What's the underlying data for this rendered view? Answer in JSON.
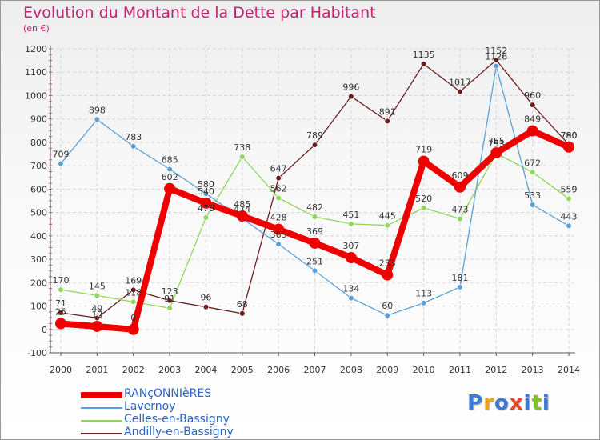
{
  "title": "Evolution du Montant de la Dette par Habitant",
  "subtitle": "(en €)",
  "logo_text": "Proxiti",
  "logo_colors": [
    "#3a7bd5",
    "#f0a020",
    "#3a7bd5",
    "#e8462a",
    "#3a7bd5",
    "#7fbf2a",
    "#3a7bd5"
  ],
  "chart_data": {
    "type": "line",
    "title": "Evolution du Montant de la Dette par Habitant",
    "ylabel": "(en €)",
    "xlabel": "",
    "ylim": [
      -100,
      1200
    ],
    "y_ticks": [
      -100,
      0,
      100,
      200,
      300,
      400,
      500,
      600,
      700,
      800,
      900,
      1000,
      1100,
      1200
    ],
    "grid": true,
    "legend_position": "bottom-left",
    "x": [
      "2000",
      "2001",
      "2002",
      "2003",
      "2004",
      "2005",
      "2006",
      "2007",
      "2008",
      "2009",
      "2010",
      "2011",
      "2012",
      "2013",
      "2014"
    ],
    "series": [
      {
        "name": "RANçONNIèRES",
        "color": "#ee0000",
        "values": [
          25,
          13,
          0,
          602,
          540,
          485,
          428,
          369,
          307,
          233,
          719,
          609,
          755,
          849,
          780
        ]
      },
      {
        "name": "Lavernoy",
        "color": "#5aa0d8",
        "values": [
          709,
          898,
          783,
          685,
          580,
          474,
          365,
          251,
          134,
          60,
          113,
          181,
          1126,
          533,
          443
        ]
      },
      {
        "name": "Celles-en-Bassigny",
        "color": "#8fd65a",
        "values": [
          170,
          145,
          118,
          91,
          478,
          738,
          562,
          482,
          451,
          445,
          520,
          473,
          753,
          672,
          559
        ]
      },
      {
        "name": "Andilly-en-Bassigny",
        "color": "#6b1e1e",
        "values": [
          71,
          49,
          169,
          123,
          96,
          68,
          647,
          789,
          996,
          891,
          1135,
          1017,
          1152,
          960,
          790
        ]
      }
    ]
  }
}
